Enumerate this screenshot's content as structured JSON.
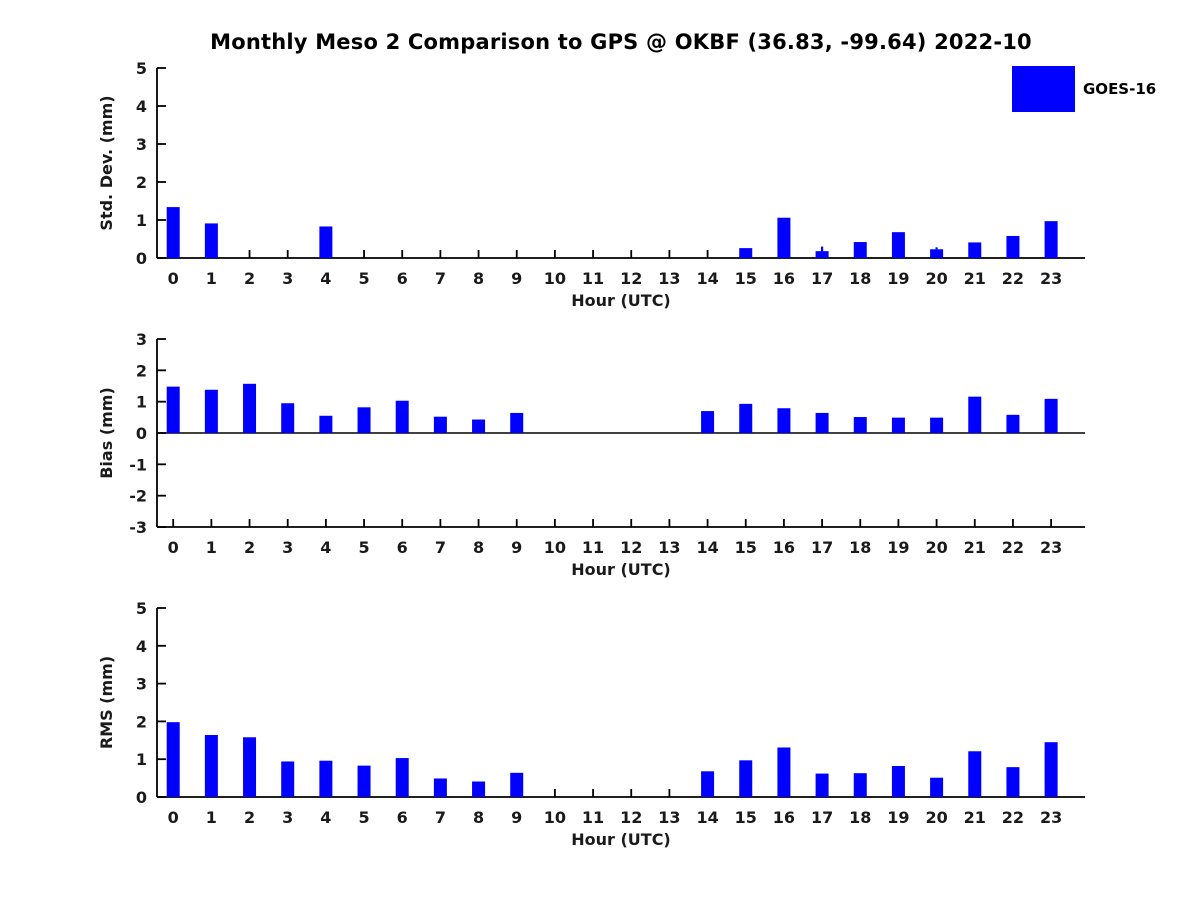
{
  "title": "Monthly Meso 2 Comparison to GPS @ OKBF (36.83, -99.64) 2022-10",
  "legend": {
    "label": "GOES-16",
    "swatch_color": "#0000FF"
  },
  "colors": {
    "bar": "#0000FF",
    "axis": "#000000",
    "text": "#1a1a1a",
    "background": "#FFFFFF"
  },
  "chart_data": [
    {
      "type": "bar",
      "title": "",
      "ylabel": "Std. Dev. (mm)",
      "xlabel": "Hour (UTC)",
      "series_name": "GOES-16",
      "categories": [
        0,
        1,
        2,
        3,
        4,
        5,
        6,
        7,
        8,
        9,
        10,
        11,
        12,
        13,
        14,
        15,
        16,
        17,
        18,
        19,
        20,
        21,
        22,
        23
      ],
      "values": [
        1.34,
        0.91,
        0,
        0,
        0.83,
        0,
        0,
        0,
        0,
        0,
        0,
        0,
        0,
        0,
        0,
        0.26,
        1.06,
        0.18,
        0.42,
        0.68,
        0.23,
        0.41,
        0.58,
        0.97
      ],
      "whiskers": [
        {
          "x": 17,
          "top": 0.3
        },
        {
          "x": 20,
          "top": 0.28
        }
      ],
      "ylim": [
        0,
        5
      ],
      "yticks": [
        0,
        1,
        2,
        3,
        4,
        5
      ],
      "grid": false,
      "legend_position": "upper-right-outside-plot"
    },
    {
      "type": "bar",
      "title": "",
      "ylabel": "Bias (mm)",
      "xlabel": "Hour (UTC)",
      "series_name": "GOES-16",
      "categories": [
        0,
        1,
        2,
        3,
        4,
        5,
        6,
        7,
        8,
        9,
        10,
        11,
        12,
        13,
        14,
        15,
        16,
        17,
        18,
        19,
        20,
        21,
        22,
        23
      ],
      "values": [
        1.48,
        1.38,
        1.57,
        0.95,
        0.55,
        0.82,
        1.03,
        0.52,
        0.43,
        0.64,
        0,
        0,
        0,
        0,
        0.7,
        0.93,
        0.79,
        0.64,
        0.51,
        0.49,
        0.49,
        1.16,
        0.58,
        1.09
      ],
      "whiskers": [],
      "ylim": [
        -3,
        3
      ],
      "yticks": [
        -3,
        -2,
        -1,
        0,
        1,
        2,
        3
      ],
      "zero_line": true,
      "grid": false
    },
    {
      "type": "bar",
      "title": "",
      "ylabel": "RMS (mm)",
      "xlabel": "Hour (UTC)",
      "series_name": "GOES-16",
      "categories": [
        0,
        1,
        2,
        3,
        4,
        5,
        6,
        7,
        8,
        9,
        10,
        11,
        12,
        13,
        14,
        15,
        16,
        17,
        18,
        19,
        20,
        21,
        22,
        23
      ],
      "values": [
        1.98,
        1.64,
        1.58,
        0.94,
        0.96,
        0.83,
        1.03,
        0.49,
        0.41,
        0.64,
        0,
        0,
        0,
        0,
        0.68,
        0.97,
        1.31,
        0.62,
        0.63,
        0.82,
        0.51,
        1.21,
        0.79,
        1.45
      ],
      "whiskers": [],
      "ylim": [
        0,
        5
      ],
      "yticks": [
        0,
        1,
        2,
        3,
        4,
        5
      ],
      "grid": false
    }
  ]
}
